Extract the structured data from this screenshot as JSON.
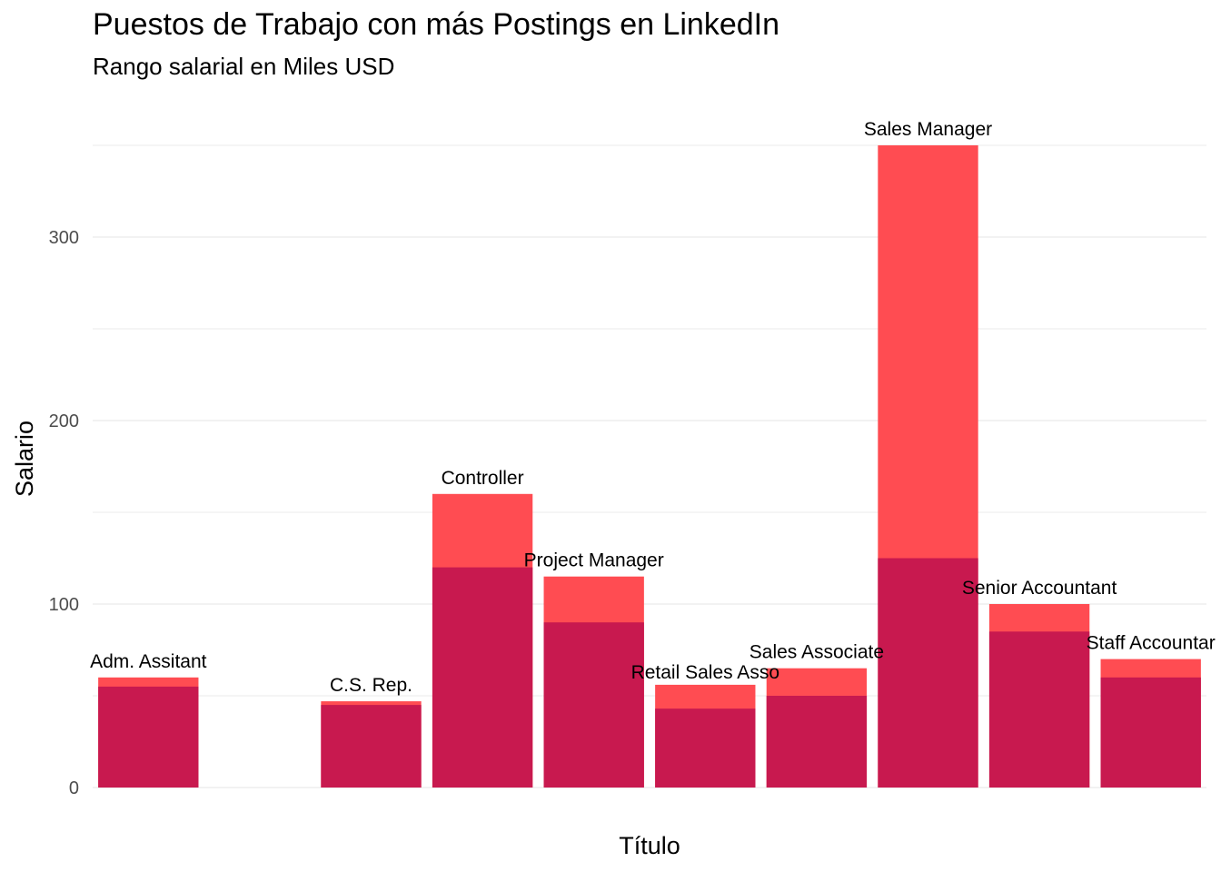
{
  "chart_data": {
    "type": "bar",
    "title": "Puestos de Trabajo con más Postings en LinkedIn",
    "subtitle": "Rango salarial en Miles USD",
    "xlabel": "Título",
    "ylabel": "Salario",
    "ylim": [
      0,
      350
    ],
    "yticks": [
      0,
      100,
      200,
      300
    ],
    "grid": true,
    "slots": 10,
    "categories": [
      "Adm. Assitant",
      "C.S. Rep.",
      "Controller",
      "Project Manager",
      "Retail Sales Asso",
      "Sales Associate",
      "Sales Manager",
      "Senior Accountant",
      "Staff Accountar"
    ],
    "slot_index": [
      0,
      2,
      3,
      4,
      5,
      6,
      7,
      8,
      9
    ],
    "series": [
      {
        "values": [
          60,
          47,
          160,
          115,
          56,
          65,
          350,
          100,
          70
        ],
        "color": "#ff4c52"
      },
      {
        "values": [
          55,
          45,
          120,
          90,
          43,
          50,
          125,
          85,
          60
        ],
        "color": "#c8194f"
      }
    ]
  }
}
